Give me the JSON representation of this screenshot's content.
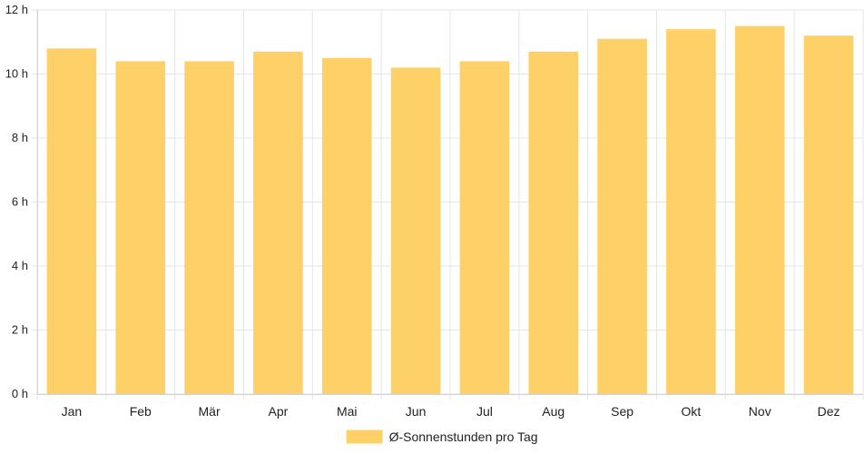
{
  "chart_data": {
    "type": "bar",
    "categories": [
      "Jan",
      "Feb",
      "Mär",
      "Apr",
      "Mai",
      "Jun",
      "Jul",
      "Aug",
      "Sep",
      "Okt",
      "Nov",
      "Dez"
    ],
    "series": [
      {
        "name": "Ø-Sonnenstunden pro Tag",
        "values": [
          10.8,
          10.4,
          10.4,
          10.7,
          10.5,
          10.2,
          10.4,
          10.7,
          11.1,
          11.4,
          11.5,
          11.2
        ],
        "color": "#fdd068"
      }
    ],
    "title": "",
    "xlabel": "",
    "ylabel": "",
    "ylim": [
      0,
      12
    ],
    "yticks": [
      {
        "value": 0,
        "label": "0 h"
      },
      {
        "value": 2,
        "label": "2 h"
      },
      {
        "value": 4,
        "label": "4 h"
      },
      {
        "value": 6,
        "label": "6 h"
      },
      {
        "value": 8,
        "label": "8 h"
      },
      {
        "value": 10,
        "label": "10 h"
      },
      {
        "value": 12,
        "label": "12 h"
      }
    ],
    "grid": true,
    "legend": "bottom-center"
  }
}
